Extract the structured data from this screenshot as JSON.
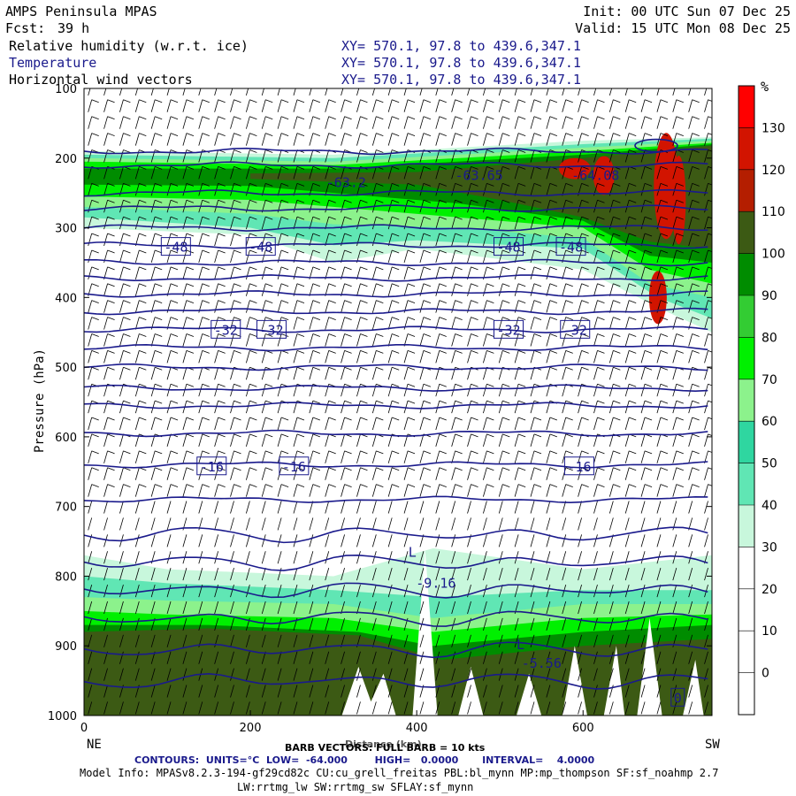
{
  "header": {
    "app": "AMPS Peninsula MPAS",
    "fcst_label": "Fcst:",
    "fcst_value": "39 h",
    "init": "Init: 00 UTC Sun 07 Dec 25",
    "valid": "Valid: 15 UTC Mon 08 Dec 25",
    "fields": [
      {
        "name": "Relative humidity (w.r.t. ice)",
        "xy": "XY= 570.1, 97.8 to 439.6,347.1"
      },
      {
        "name": "Temperature",
        "xy": "XY= 570.1, 97.8 to 439.6,347.1"
      },
      {
        "name": "Horizontal wind vectors",
        "xy": "XY= 570.1, 97.8 to 439.6,347.1"
      }
    ]
  },
  "axes": {
    "ylabel": "Pressure (hPa)",
    "xlabel": "Distance (km)",
    "left_end": "NE",
    "right_end": "SW",
    "colorbar_unit": "%"
  },
  "footer": {
    "barb": "BARB VECTORS: FULL BARB = 10 kts",
    "contours": "CONTOURS:  UNITS=°C  LOW=  -64.000        HIGH=   0.0000       INTERVAL=    4.0000",
    "model_info": "Model Info: MPASv8.2.3-194-gf29cd82c CU:cu_grell_freitas PBL:bl_mynn MP:mp_thompson SF:sf_noahmp 2.7",
    "model_info2": "LW:rrtmg_lw SW:rrtmg_sw SFLAY:sf_mynn"
  },
  "chart_data": {
    "type": "heatmap",
    "x_range": [
      0,
      755
    ],
    "x_ticks": [
      0,
      200,
      400,
      600
    ],
    "y_range": [
      1000,
      100
    ],
    "y_ticks": [
      100,
      200,
      300,
      400,
      500,
      600,
      700,
      800,
      900,
      1000
    ],
    "y_scale": "linear-pressure",
    "colorbar": {
      "levels": [
        -10,
        0,
        10,
        20,
        30,
        40,
        50,
        60,
        70,
        80,
        90,
        100,
        110,
        120,
        130,
        140
      ],
      "tick_labels": [
        "0",
        "10",
        "20",
        "30",
        "40",
        "50",
        "60",
        "70",
        "80",
        "90",
        "100",
        "110",
        "120",
        "130"
      ],
      "colors": [
        "#ffffff",
        "#ffffff",
        "#ffffff",
        "#ffffff",
        "#c8f7dc",
        "#60e6b4",
        "#2fd6a0",
        "#8cf28c",
        "#00f000",
        "#33cc33",
        "#008c00",
        "#3c5a14",
        "#b41e00",
        "#d21400",
        "#ff0000"
      ]
    },
    "temperature_labels": [
      {
        "x": 290,
        "p": 235,
        "text": "-63.2"
      },
      {
        "x": 445,
        "p": 225,
        "text": "-63.65"
      },
      {
        "x": 585,
        "p": 225,
        "text": "-64.08"
      },
      {
        "x": 95,
        "p": 328,
        "text": "-48"
      },
      {
        "x": 197,
        "p": 328,
        "text": "-48"
      },
      {
        "x": 495,
        "p": 328,
        "text": "-48"
      },
      {
        "x": 570,
        "p": 328,
        "text": "-48"
      },
      {
        "x": 155,
        "p": 447,
        "text": "-32"
      },
      {
        "x": 210,
        "p": 447,
        "text": "-32"
      },
      {
        "x": 495,
        "p": 447,
        "text": "-32"
      },
      {
        "x": 575,
        "p": 447,
        "text": "-32"
      },
      {
        "x": 138,
        "p": 643,
        "text": "-16"
      },
      {
        "x": 237,
        "p": 643,
        "text": "-16"
      },
      {
        "x": 580,
        "p": 643,
        "text": "-16"
      },
      {
        "x": 398,
        "p": 810,
        "text": "-9.16"
      },
      {
        "x": 525,
        "p": 925,
        "text": "-5.56"
      },
      {
        "x": 708,
        "p": 975,
        "text": "0"
      }
    ],
    "lows": [
      {
        "x": 390,
        "p": 772,
        "text": "L"
      },
      {
        "x": 520,
        "p": 905,
        "text": "L"
      }
    ],
    "isotherm_levels_hpa": [
      190,
      210,
      250,
      272,
      300,
      325,
      350,
      372,
      395,
      420,
      446,
      472,
      500,
      530,
      555,
      595,
      640,
      690,
      740,
      780,
      820,
      860,
      905,
      950
    ]
  }
}
